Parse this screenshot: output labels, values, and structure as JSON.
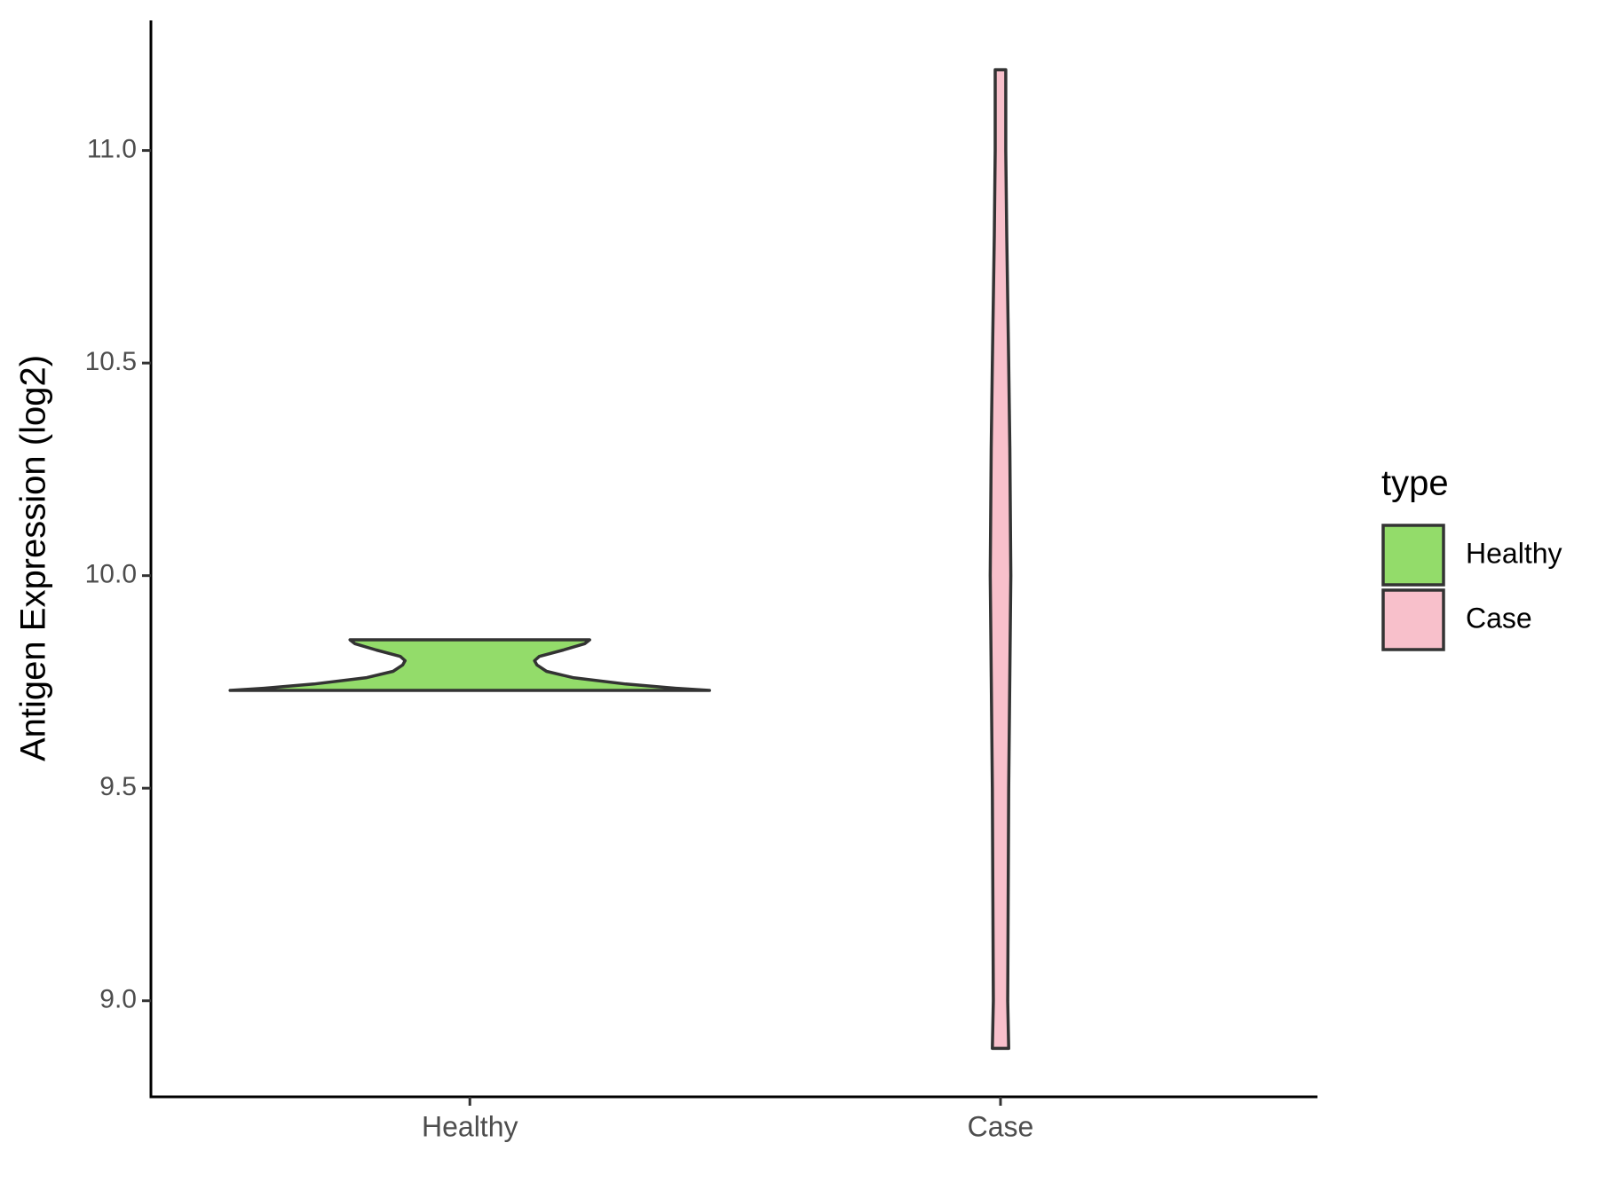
{
  "chart_data": {
    "type": "violin",
    "y_label": "Antigen Expression (log2)",
    "categories": [
      "Healthy",
      "Case"
    ],
    "legend_title": "type",
    "legend_position": "right",
    "series": [
      {
        "name": "Healthy",
        "color": "#93dc6a",
        "y": [
          9.73,
          9.735,
          9.745,
          9.76,
          9.775,
          9.79,
          9.8,
          9.81,
          9.825,
          9.84,
          9.849
        ],
        "density": [
          1.0,
          0.86,
          0.65,
          0.43,
          0.32,
          0.28,
          0.27,
          0.29,
          0.39,
          0.48,
          0.5
        ]
      },
      {
        "name": "Case",
        "color": "#f8c0cb",
        "y": [
          8.888,
          9.0,
          9.5,
          10.0,
          10.3,
          10.5,
          10.8,
          11.0,
          11.19
        ],
        "density": [
          0.034,
          0.03,
          0.034,
          0.043,
          0.039,
          0.034,
          0.026,
          0.022,
          0.022
        ]
      }
    ],
    "ylim": [
      8.774,
      11.306
    ],
    "yticks": [
      {
        "value": 9,
        "label": "9.0"
      },
      {
        "value": 9.5,
        "label": "9.5"
      },
      {
        "value": 10,
        "label": "10.0"
      },
      {
        "value": 10.5,
        "label": "10.5"
      },
      {
        "value": 11,
        "label": "11.0"
      }
    ],
    "grid": false
  }
}
